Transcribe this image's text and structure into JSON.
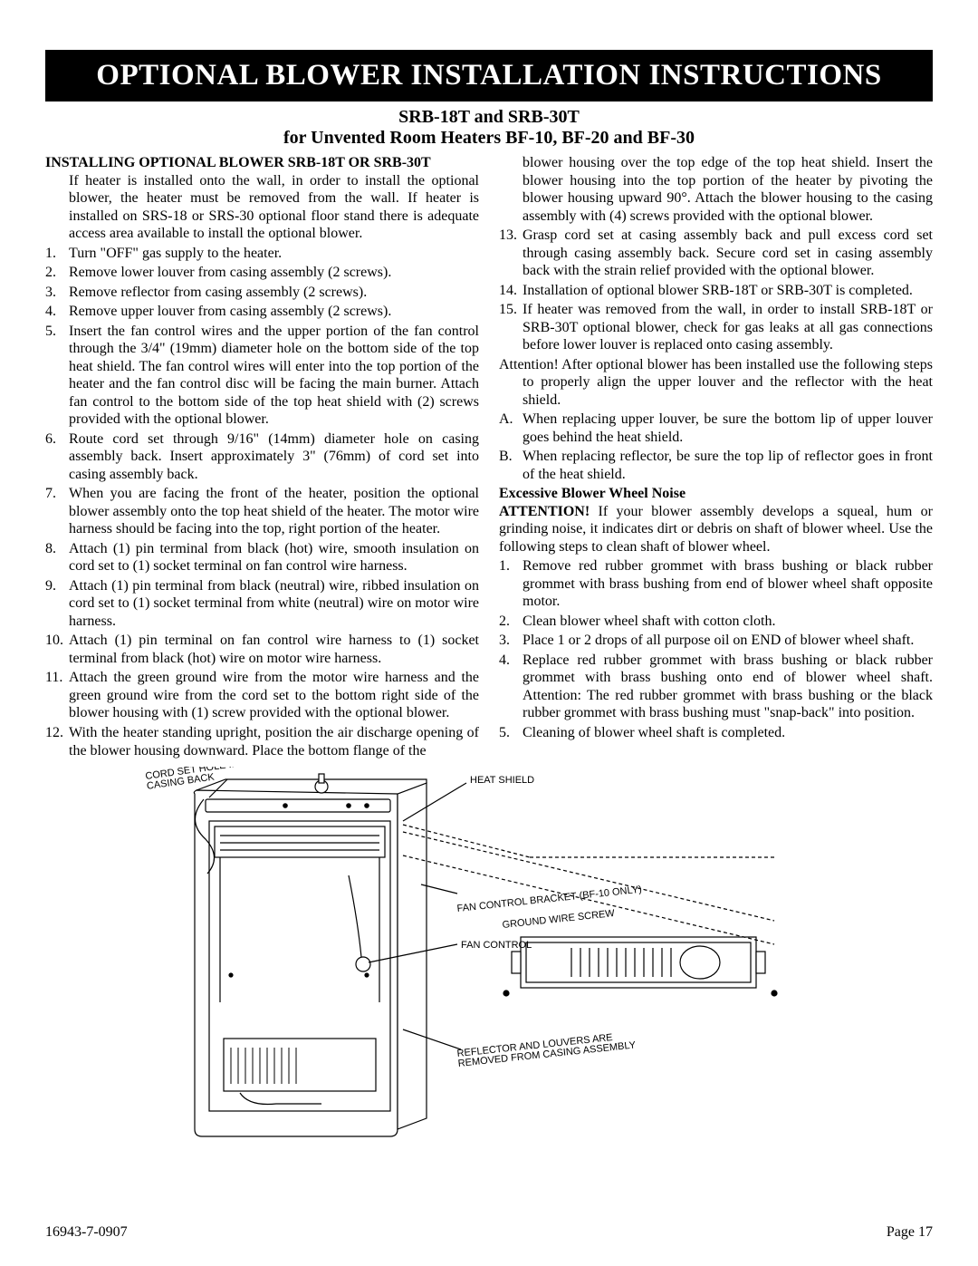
{
  "title_bar": "OPTIONAL BLOWER INSTALLATION INSTRUCTIONS",
  "subtitle1": "SRB-18T and SRB-30T",
  "subtitle2": "for Unvented Room Heaters  BF-10, BF-20 and BF-30",
  "left": {
    "heading": "INSTALLING OPTIONAL BLOWER SRB-18T OR SRB-30T",
    "intro": "If heater is installed onto the wall, in order to install the optional blower, the heater must be removed from the wall.  If heater is installed on SRS-18 or SRS-30 optional floor stand there is adequate access area available to install the optional blower.",
    "steps": [
      "Turn \"OFF\" gas supply to the heater.",
      "Remove lower louver from casing assembly (2 screws).",
      "Remove reflector from casing assembly (2 screws).",
      "Remove upper louver from casing assembly (2 screws).",
      "Insert the fan control wires and the upper portion of the fan control through the 3/4\" (19mm) diameter hole on the bottom side of the top heat shield.  The fan control wires will enter into the top portion of the heater and the fan control disc will be facing the main burner. Attach fan control to the bottom side of the top heat shield with (2) screws provided with the optional blower.",
      "Route cord set through 9/16\" (14mm) diameter hole on casing assembly back.  Insert approximately 3\" (76mm) of cord set into casing assembly back.",
      "When you are facing the front of the heater, position the optional blower assembly onto the top heat shield of the heater.  The motor wire harness should be facing into the top, right portion of the heater.",
      "Attach (1) pin terminal from black (hot) wire, smooth insulation on cord set to (1) socket terminal on fan control wire harness.",
      "Attach (1) pin terminal from black (neutral) wire, ribbed insulation on cord set to (1) socket terminal from white (neutral) wire on motor wire harness.",
      "Attach (1) pin terminal on fan control wire harness to (1) socket terminal from black (hot) wire on motor wire harness.",
      "Attach the green ground wire from the motor wire harness and the green ground wire from the cord set to the bottom right side of the blower housing with (1) screw provided with the optional blower.",
      "With the heater standing upright, position the air discharge opening of the blower housing downward.  Place the bottom flange of the"
    ]
  },
  "right": {
    "cont": "blower housing over the top edge of the top heat  shield.  Insert the blower housing into the top portion of the heater by pivoting the blower housing upward 90°.  Attach the blower housing to the casing assembly with (4) screws provided with the optional blower.",
    "steps": [
      {
        "n": "13.",
        "t": "Grasp cord set at casing assembly back and pull excess cord set through casing assembly back.  Secure cord set in casing assembly back with the strain relief provided with the optional blower."
      },
      {
        "n": "14.",
        "t": "Installation of optional blower SRB-18T or SRB-30T is completed."
      },
      {
        "n": "15.",
        "t": "If heater was removed from the wall, in order to install SRB-18T or SRB-30T optional blower, check for gas leaks at all gas connections before lower louver is replaced onto casing assembly."
      }
    ],
    "attention": "Attention!  After optional blower has been installed use the following steps to properly align the upper louver and the reflector with the heat shield.",
    "letters": [
      {
        "n": "A.",
        "t": "When replacing upper louver, be sure the bottom lip of upper louver goes behind the heat shield."
      },
      {
        "n": "B.",
        "t": "When replacing reflector, be sure the top lip of reflector goes in front of the heat shield."
      }
    ],
    "noise_head": "Excessive Blower Wheel Noise",
    "noise_attn_label": "ATTENTION!",
    "noise_attn": " If your blower assembly develops a squeal, hum or grinding noise, it indicates dirt or debris on shaft of blower wheel. Use the following steps to clean shaft of blower wheel.",
    "noise_steps": [
      "Remove red rubber grommet with brass bushing or black rubber grommet with brass bushing from end of blower wheel shaft opposite motor.",
      "Clean blower wheel shaft with cotton cloth.",
      "Place 1 or 2 drops of all purpose oil on END of blower wheel shaft.",
      "Replace red rubber grommet with brass bushing or black rubber grommet with brass bushing onto end of blower wheel shaft. Attention: The red rubber grommet with brass bushing or the black rubber grommet with brass bushing must \"snap-back\" into position.",
      "Cleaning of blower wheel shaft is completed."
    ]
  },
  "diagram": {
    "labels": {
      "cord_hole": "CORD SET HOLE IN\nCASING BACK",
      "heat_shield": "HEAT SHIELD",
      "fan_bracket": "FAN CONTROL BRACKET (BF-10 ONLY)",
      "ground_screw": "GROUND WIRE SCREW",
      "fan_control": "FAN CONTROL",
      "reflector": "REFLECTOR AND LOUVERS ARE\nREMOVED FROM CASING ASSEMBLY"
    },
    "stroke": "#000000",
    "fill": "#ffffff"
  },
  "footer": {
    "left": "16943-7-0907",
    "right": "Page 17"
  }
}
